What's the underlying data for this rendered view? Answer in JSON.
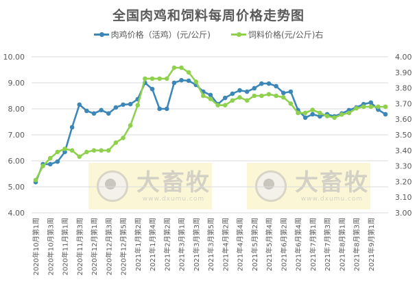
{
  "chart_data": {
    "type": "line",
    "title": "全国肉鸡和饲料每周价格走势图",
    "xlabel": "",
    "ylabel": "",
    "ylabel_right": "",
    "legend_position": "top",
    "grid": true,
    "ylim": [
      4.0,
      10.0
    ],
    "ylim_right": [
      3.0,
      4.0
    ],
    "yticks": [
      "10.00",
      "9.00",
      "8.00",
      "7.00",
      "6.00",
      "5.00",
      "4.00"
    ],
    "yticks_right": [
      "4.00",
      "3.90",
      "3.80",
      "3.70",
      "3.60",
      "3.50",
      "3.40",
      "3.30",
      "3.20",
      "3.10",
      "3.00"
    ],
    "x_tick_labels": [
      "2020年10月第1周",
      "2020年10月第3周",
      "2020年11月第1周",
      "2020年11月第3周",
      "2020年12月第1周",
      "2020年12月第3周",
      "2020年12月第5周",
      "2021年1月第2周",
      "2021年1月第4周",
      "2021年2月第2周",
      "2021年3月第1周",
      "2021年3月第3周",
      "2021年3月第5周",
      "2021年4月第2周",
      "2021年4月第4周",
      "2021年5月第2周",
      "2021年5月第4周",
      "2021年6月第2周",
      "2021年6月第4周",
      "2021年7月第1周",
      "2021年7月第3周",
      "2021年8月第1周",
      "2021年8月第3周",
      "2021年9月第1周"
    ],
    "series": [
      {
        "name": "肉鸡价格（活鸡）(元/公斤)",
        "axis": "left",
        "color": "#3c87b7",
        "values": [
          5.18,
          5.87,
          5.87,
          5.97,
          6.34,
          7.29,
          8.16,
          7.92,
          7.82,
          7.95,
          7.82,
          8.05,
          8.16,
          8.18,
          8.37,
          9.0,
          8.76,
          8.0,
          8.0,
          9.0,
          9.1,
          9.08,
          8.92,
          8.66,
          8.53,
          8.18,
          8.42,
          8.58,
          8.71,
          8.66,
          8.79,
          8.97,
          8.97,
          8.87,
          8.61,
          8.66,
          7.95,
          7.66,
          7.79,
          7.71,
          7.79,
          7.71,
          7.82,
          7.95,
          8.05,
          8.18,
          8.24,
          7.97,
          7.79
        ]
      },
      {
        "name": "饲料价格(元/公斤)右",
        "axis": "right",
        "color": "#8fd14f",
        "values": [
          3.21,
          3.3,
          3.35,
          3.39,
          3.41,
          3.4,
          3.36,
          3.39,
          3.4,
          3.4,
          3.4,
          3.45,
          3.48,
          3.56,
          3.69,
          3.86,
          3.86,
          3.86,
          3.86,
          3.93,
          3.93,
          3.9,
          3.84,
          3.75,
          3.73,
          3.69,
          3.69,
          3.72,
          3.74,
          3.72,
          3.75,
          3.75,
          3.76,
          3.75,
          3.74,
          3.7,
          3.64,
          3.64,
          3.66,
          3.64,
          3.62,
          3.61,
          3.63,
          3.64,
          3.67,
          3.68,
          3.68,
          3.68,
          3.68
        ]
      }
    ]
  },
  "legend": {
    "chicken_label": "肉鸡价格（活鸡）(元/公斤)",
    "feed_label": "饲料价格(元/公斤)右"
  },
  "watermark": {
    "brand": "大畜牧",
    "url": "www.dxumu.com"
  }
}
